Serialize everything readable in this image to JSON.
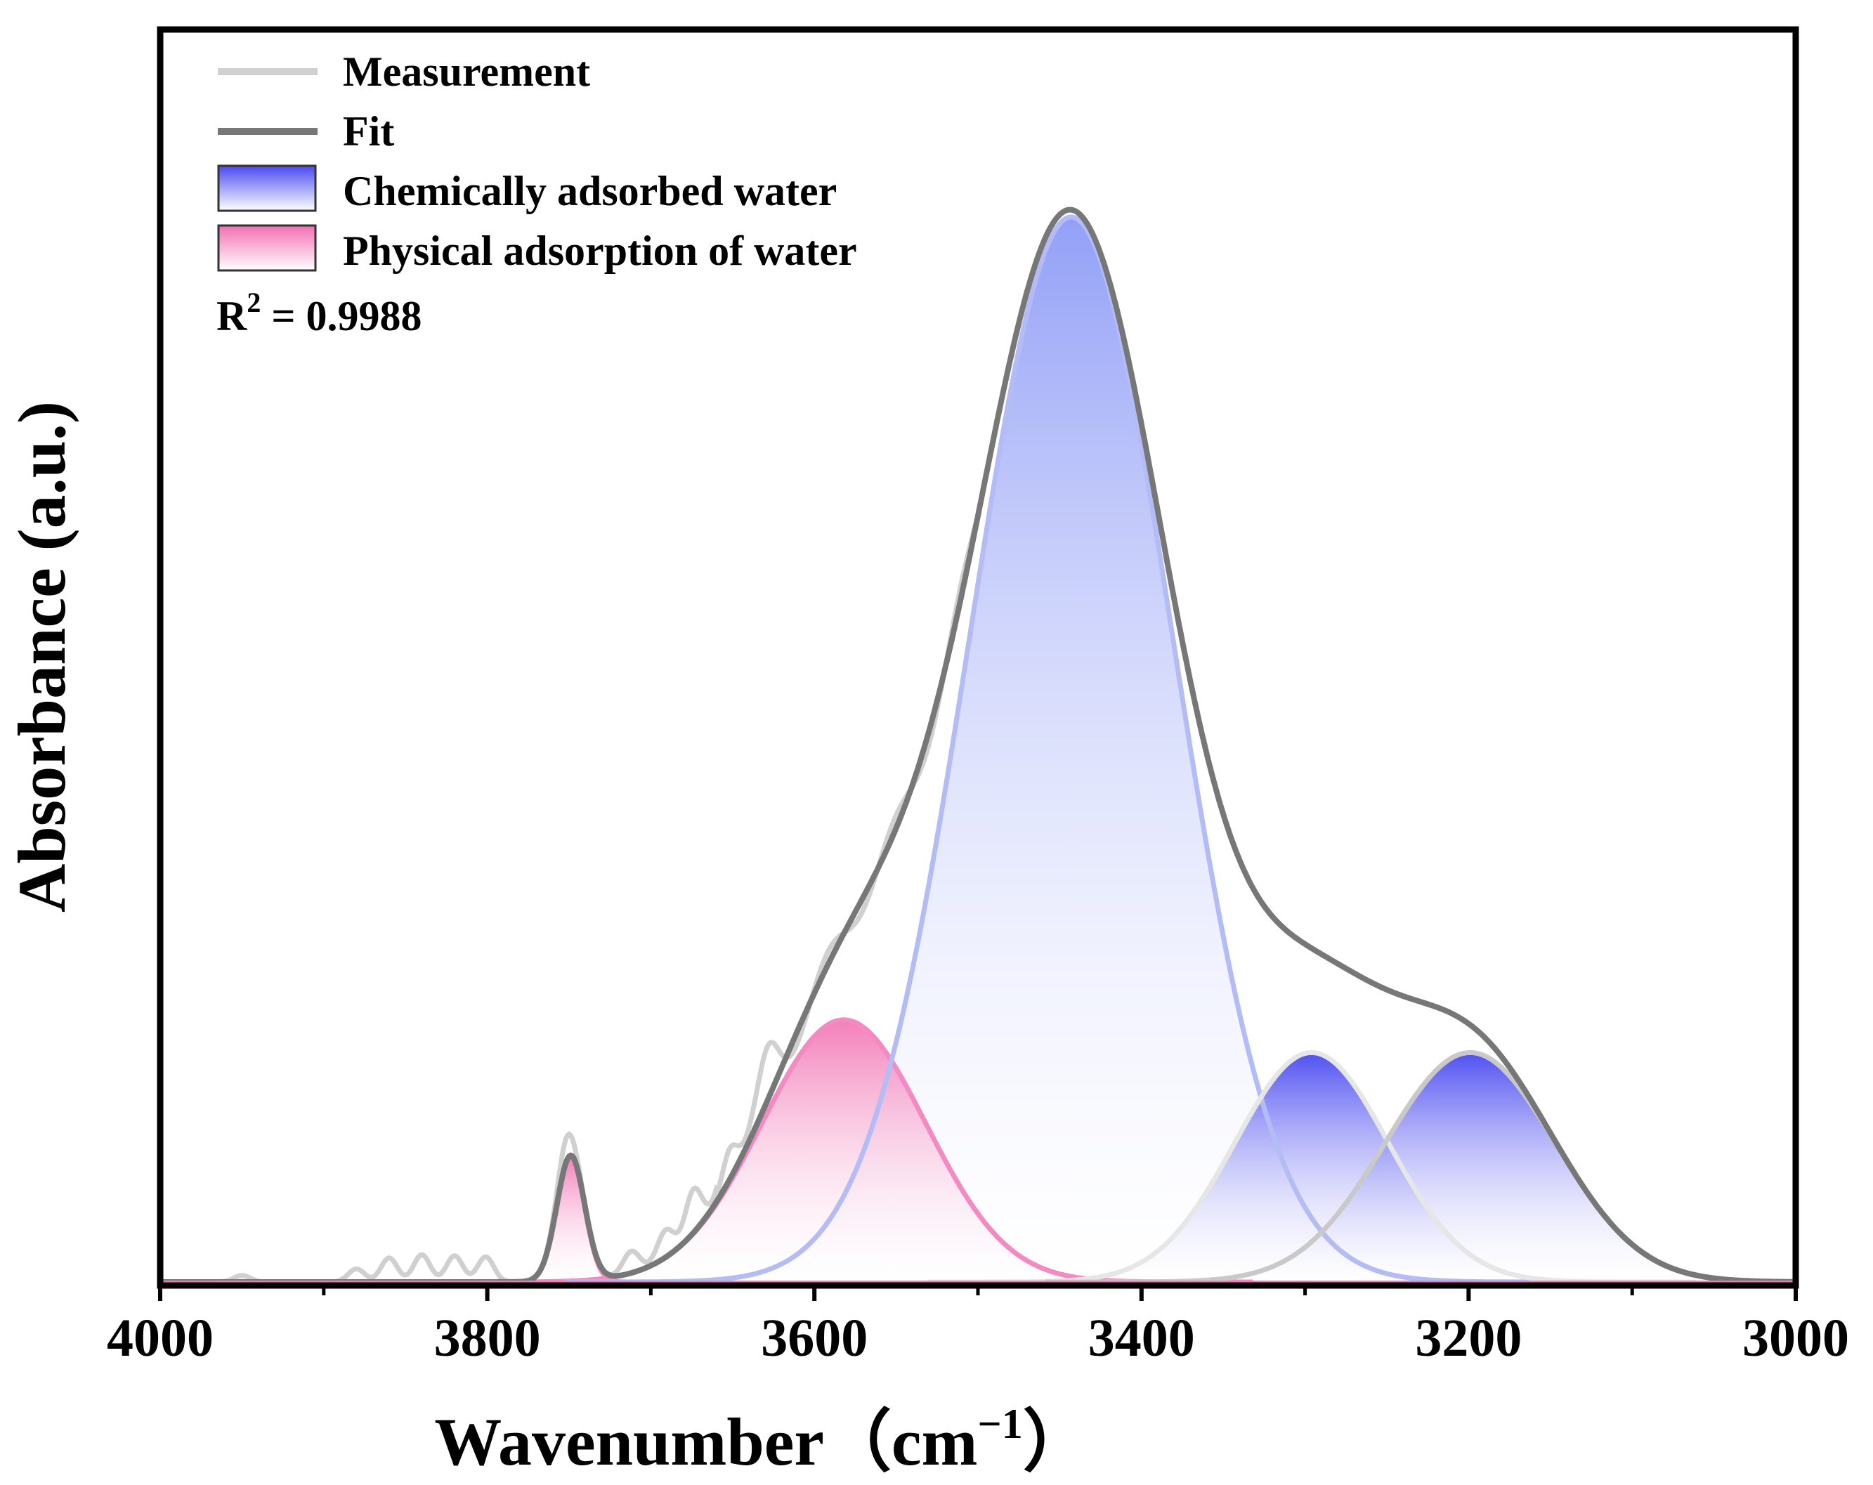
{
  "chart_data": {
    "type": "line",
    "title": "",
    "xlabel": "Wavenumber（cm",
    "xlabel_superscript": "−1",
    "xlabel_close": "）",
    "ylabel": "Absorbance (a.u.)",
    "xlim": [
      4000,
      3000
    ],
    "ylim": [
      0,
      1.0
    ],
    "x_direction": "reversed",
    "x_ticks": [
      4000,
      3800,
      3600,
      3400,
      3200,
      3000
    ],
    "x_tick_labels": [
      "4000",
      "3800",
      "3600",
      "3400",
      "3200",
      "3000"
    ],
    "x_minor_ticks": [
      3900,
      3700,
      3500,
      3300,
      3100
    ],
    "y_ticks_shown": false,
    "grid": false,
    "legend": {
      "position": "top-left",
      "entries": [
        {
          "label": "Measurement",
          "kind": "line",
          "color": "#d0d0d0"
        },
        {
          "label": "Fit",
          "kind": "line",
          "color": "#777777"
        },
        {
          "label": "Chemically adsorbed water",
          "kind": "fill",
          "color": "#5555ee"
        },
        {
          "label": "Physical adsorption of water",
          "kind": "fill",
          "color": "#f27ab8"
        }
      ]
    },
    "annotation": {
      "prefix": "R",
      "superscript": "2",
      "suffix": " = 0.9988"
    },
    "components": [
      {
        "name": "Physical adsorption of water",
        "group": "physical",
        "center": 3749,
        "amplitude": 0.115,
        "sigma": 8.5,
        "color": "#f27ab8"
      },
      {
        "name": "Physical adsorption of water",
        "group": "physical",
        "center": 3582,
        "amplitude": 0.24,
        "sigma": 50,
        "color": "#f27ab8"
      },
      {
        "name": "Chemically adsorbed water",
        "group": "chemical",
        "center": 3443,
        "amplitude": 0.975,
        "sigma": 62,
        "color": "#8a99f5"
      },
      {
        "name": "Chemically adsorbed water",
        "group": "chemical",
        "center": 3296,
        "amplitude": 0.21,
        "sigma": 47,
        "color": "#6a6af2"
      },
      {
        "name": "Chemically adsorbed water",
        "group": "chemical",
        "center": 3199,
        "amplitude": 0.21,
        "sigma": 52,
        "color": "#5a5af2"
      }
    ],
    "measurement_ripples": [
      {
        "center": 3860,
        "amplitude": 0.022,
        "sigma": 5
      },
      {
        "center": 3840,
        "amplitude": 0.025,
        "sigma": 5
      },
      {
        "center": 3820,
        "amplitude": 0.024,
        "sigma": 5
      },
      {
        "center": 3801,
        "amplitude": 0.023,
        "sigma": 5
      },
      {
        "center": 3880,
        "amplitude": 0.012,
        "sigma": 5
      },
      {
        "center": 3950,
        "amplitude": 0.006,
        "sigma": 5
      },
      {
        "center": 3752,
        "amplitude": 0.022,
        "sigma": 5
      },
      {
        "center": 3712,
        "amplitude": 0.02,
        "sigma": 5
      },
      {
        "center": 3691,
        "amplitude": 0.025,
        "sigma": 5
      },
      {
        "center": 3674,
        "amplitude": 0.04,
        "sigma": 5
      },
      {
        "center": 3652,
        "amplitude": 0.04,
        "sigma": 5
      },
      {
        "center": 3628,
        "amplitude": 0.04,
        "sigma": 6
      }
    ]
  }
}
